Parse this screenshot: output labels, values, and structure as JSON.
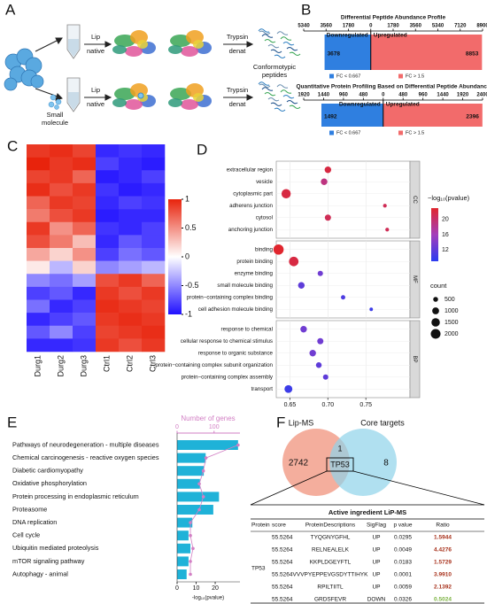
{
  "panel_labels": [
    "A",
    "B",
    "C",
    "D",
    "E",
    "F"
  ],
  "diagram": {
    "step1": [
      "Lip",
      "native"
    ],
    "step2": [
      "Trypsin",
      "denat"
    ],
    "product": [
      "Conformotypic",
      "peptides"
    ],
    "treatment": [
      "Small",
      "molecule"
    ]
  },
  "chart_data": [
    {
      "type": "diverging-bar",
      "title": "Differential Peptide Abundance Profile",
      "categories": [
        "Downregulated",
        "Upregulated"
      ],
      "values": [
        -3678,
        8853
      ],
      "value_labels": [
        "3678",
        "8853"
      ],
      "colors": [
        "#2f7fe0",
        "#f26b6b"
      ],
      "xlim": [
        -5340,
        8900
      ],
      "xticks": [
        {
          "value": -5340,
          "label": "5340"
        },
        {
          "value": -3560,
          "label": "3560"
        },
        {
          "value": -1780,
          "label": "1780"
        },
        0,
        1780,
        3560,
        5340,
        7120,
        8900
      ],
      "legend": [
        "FC < 0.667",
        "FC > 1.5"
      ]
    },
    {
      "type": "diverging-bar",
      "title": "Quantitative Protein Profiling Based on Differential Peptide Abundance",
      "categories": [
        "Downregulated",
        "Upregulated"
      ],
      "values": [
        -1492,
        2396
      ],
      "value_labels": [
        "1492",
        "2396"
      ],
      "colors": [
        "#2f7fe0",
        "#f26b6b"
      ],
      "xlim": [
        -1920,
        2400
      ],
      "xticks": [
        {
          "value": -1920,
          "label": "1920"
        },
        {
          "value": -1440,
          "label": "1440"
        },
        {
          "value": -960,
          "label": "960"
        },
        {
          "value": -480,
          "label": "480"
        },
        0,
        480,
        960,
        1440,
        1920,
        2400
      ],
      "legend": [
        "FC < 0.667",
        "FC > 1.5"
      ]
    },
    {
      "type": "heatmap",
      "columns": [
        "Durg1",
        "Durg2",
        "Durg3",
        "Ctrl1",
        "Ctrl2",
        "Ctrl3"
      ],
      "values": [
        [
          0.9,
          0.95,
          0.85,
          -0.9,
          -0.85,
          -0.9
        ],
        [
          1,
          0.9,
          0.95,
          -0.8,
          -0.9,
          -0.95
        ],
        [
          0.85,
          0.9,
          0.7,
          -0.95,
          -0.9,
          -0.8
        ],
        [
          0.95,
          0.8,
          0.9,
          -0.85,
          -0.95,
          -0.9
        ],
        [
          0.7,
          0.9,
          0.85,
          -0.9,
          -0.8,
          -0.85
        ],
        [
          0.6,
          0.8,
          0.9,
          -0.95,
          -0.9,
          -0.9
        ],
        [
          0.9,
          0.5,
          0.7,
          -0.85,
          -0.9,
          -0.8
        ],
        [
          0.8,
          0.6,
          0.3,
          -0.9,
          -0.7,
          -0.8
        ],
        [
          0.4,
          0.2,
          0.5,
          -0.8,
          -0.6,
          -0.7
        ],
        [
          0.1,
          -0.3,
          0.2,
          -0.5,
          -0.4,
          -0.3
        ],
        [
          -0.5,
          -0.6,
          -0.4,
          0.8,
          0.9,
          0.7
        ],
        [
          -0.8,
          -0.7,
          -0.9,
          0.9,
          0.8,
          0.9
        ],
        [
          -0.6,
          -0.9,
          -0.8,
          0.95,
          0.9,
          0.85
        ],
        [
          -0.9,
          -0.8,
          -0.7,
          0.9,
          0.95,
          0.9
        ],
        [
          -0.7,
          -0.5,
          -0.8,
          0.85,
          0.9,
          0.95
        ],
        [
          -0.9,
          -0.9,
          -0.85,
          0.9,
          0.8,
          0.9
        ]
      ],
      "clim": [
        -1,
        1
      ],
      "colorbar_ticks": [
        1,
        0.5,
        0,
        -0.5,
        -1
      ],
      "colors": [
        "#2010ff",
        "#ffffff",
        "#e8230c"
      ]
    },
    {
      "type": "dot",
      "facets": [
        {
          "name": "CC",
          "categories": [
            "extracellular region",
            "vesicle",
            "cytoplasmic part",
            "adherens junction",
            "cytosol",
            "anchoring junction"
          ],
          "x": [
            0.7,
            0.695,
            0.645,
            0.775,
            0.7,
            0.778
          ],
          "pvalue": [
            22,
            19,
            22,
            21,
            21,
            21
          ],
          "count": [
            900,
            900,
            1800,
            300,
            800,
            300
          ]
        },
        {
          "name": "MF",
          "categories": [
            "binding",
            "protein binding",
            "enzyme binding",
            "small molecule binding",
            "protein−containing complex binding",
            "cell adhesion molecule binding"
          ],
          "x": [
            0.635,
            0.655,
            0.69,
            0.665,
            0.72,
            0.757
          ],
          "pvalue": [
            23,
            22,
            13,
            12,
            11,
            10
          ],
          "count": [
            2200,
            1900,
            600,
            900,
            400,
            250
          ]
        },
        {
          "name": "BP",
          "categories": [
            "response to chemical",
            "cellular response to chemical stimulus",
            "response to organic substance",
            "protein−containing complex subunit organization",
            "protein−containing complex assembly",
            "transport"
          ],
          "x": [
            0.668,
            0.69,
            0.68,
            0.688,
            0.697,
            0.648
          ],
          "pvalue": [
            13,
            13,
            13,
            12,
            12,
            10
          ],
          "count": [
            900,
            800,
            900,
            700,
            600,
            1300
          ]
        }
      ],
      "xlim": [
        0.632,
        0.808
      ],
      "xticks": [
        0.65,
        {
          "value": 0.7,
          "label": "0.70"
        },
        0.75
      ],
      "color_title": "−log₁₀(pvalue)",
      "color_lim": [
        9,
        23
      ],
      "color_ticks": [
        20,
        16,
        12
      ],
      "colors": [
        "#2b3cf0",
        "#a33dbb",
        "#e0262e"
      ],
      "size_title": "count",
      "size_ticks": [
        500,
        1000,
        1500,
        2000
      ]
    },
    {
      "type": "hbar",
      "categories": [
        "Pathways of neurodegeneration - multiple diseases",
        "Chemical carcinogenesis - reactive oxygen species",
        "Diabetic cardiomyopathy",
        "Oxidative phosphorylation",
        "Protein processing in endoplasmic reticulum",
        "Proteasome",
        "DNA replication",
        "Cell cycle",
        "Ubiquitin mediated proteolysis",
        "mTOR signaling pathway",
        "Autophagy - animal"
      ],
      "values": [
        32,
        15,
        14,
        12,
        22,
        19,
        8,
        6,
        7,
        6,
        5
      ],
      "gene_counts": [
        165,
        78,
        71,
        60,
        71,
        60,
        36,
        36,
        43,
        36,
        36
      ],
      "xlim": [
        0,
        33
      ],
      "xticks": [
        0,
        10,
        20
      ],
      "xlabel": "-log₁₀(pvalue)",
      "x2lim": [
        0,
        170
      ],
      "x2ticks": [
        0,
        100
      ],
      "x2label": "Number of genes",
      "color": "#1fb2d8",
      "line_color": "#d27fc4"
    }
  ],
  "venn": {
    "sets": [
      "Lip-MS",
      "Core targets"
    ],
    "only_a": 2742,
    "only_b": 8,
    "both": 1,
    "shared_label": "TP53",
    "colors": [
      "#f2a08c",
      "#8fd3ea"
    ]
  },
  "table": {
    "title": "Active ingredient LiP-MS",
    "columns": [
      "Protein",
      "score",
      "ProteinDescriptions",
      "SigFlag",
      "p value",
      "Ratio"
    ],
    "protein": "TP53",
    "rows": [
      [
        "55.5264",
        "TYQGNYGFHL",
        "UP",
        "0.0295",
        "1.5944"
      ],
      [
        "55.5264",
        "RELNEALELK",
        "UP",
        "0.0049",
        "4.4276"
      ],
      [
        "55.5264",
        "KKPLDGEYFTL",
        "UP",
        "0.0183",
        "1.5729"
      ],
      [
        "55.5264",
        "VVVPYEPPEVGSDYTTIHYK",
        "UP",
        "0.0001",
        "3.9910"
      ],
      [
        "55.5264",
        "RPILTIITL",
        "UP",
        "0.0059",
        "2.1392"
      ],
      [
        "55.5264",
        "GRDSFEVR",
        "DOWN",
        "0.0326",
        "0.5024"
      ]
    ],
    "up_color": "#a8321c",
    "down_color": "#7cb342"
  }
}
